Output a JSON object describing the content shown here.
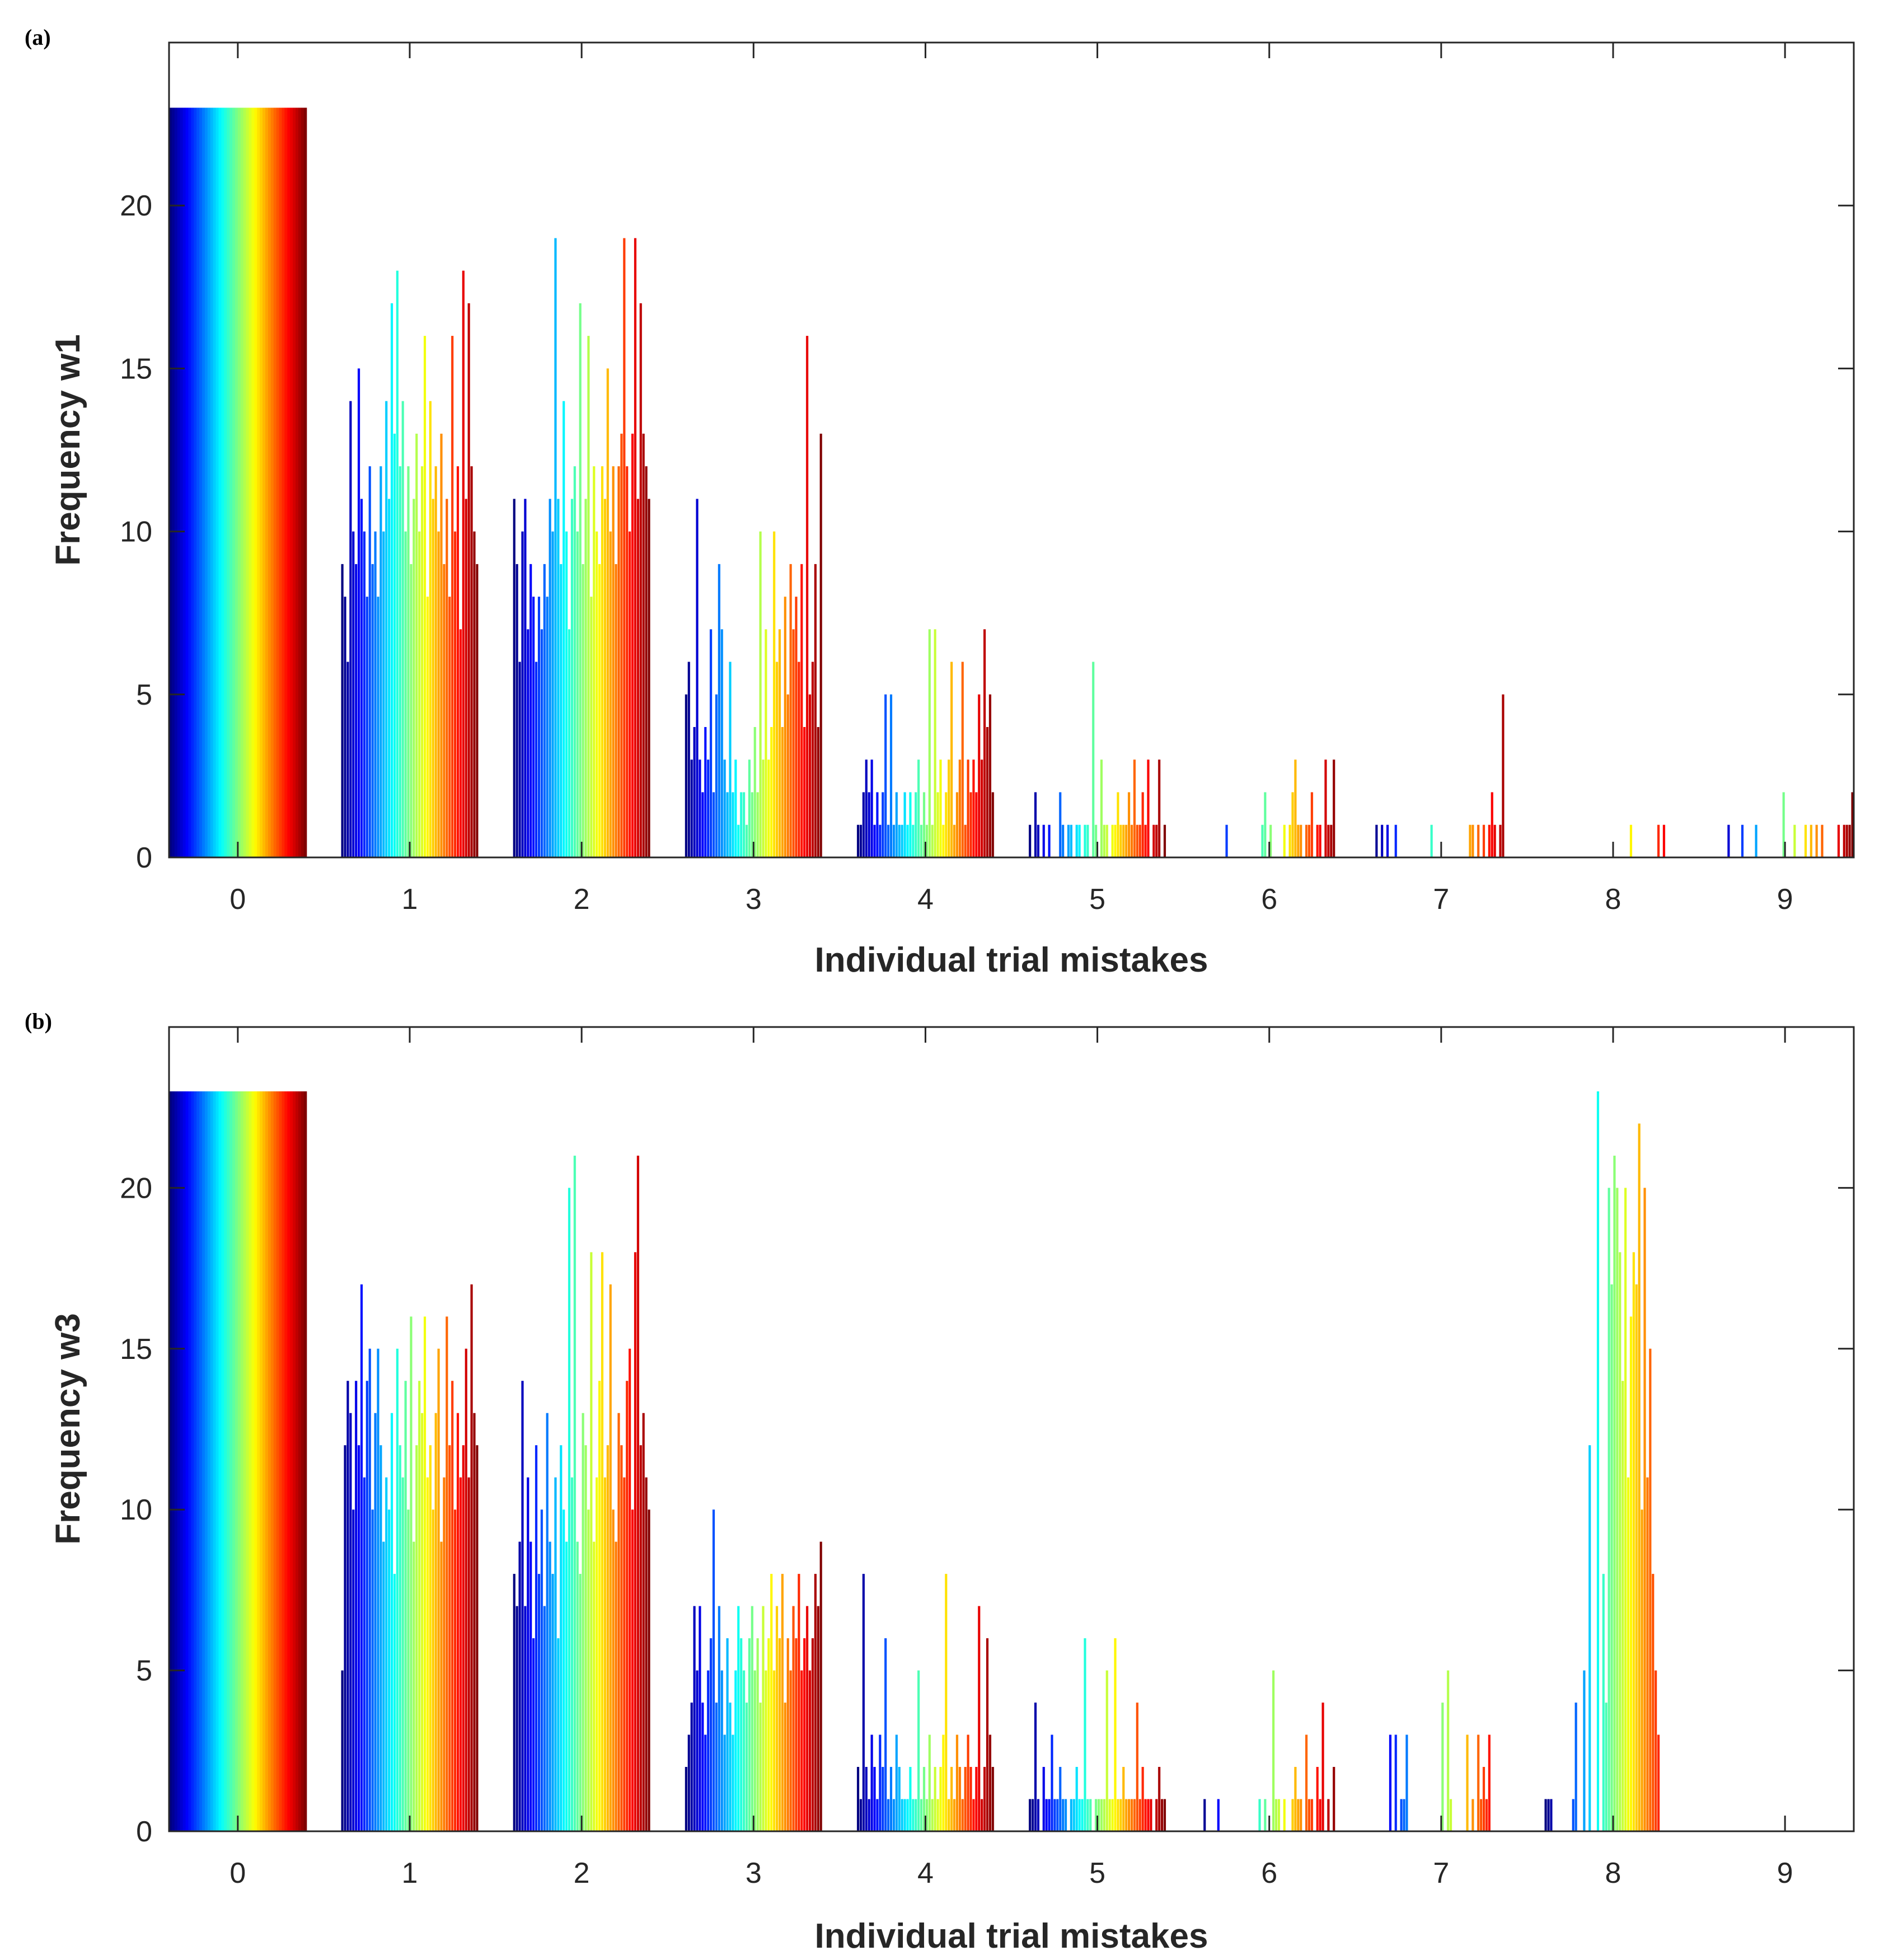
{
  "chart_data": [
    {
      "type": "bar",
      "panel": "(a)",
      "xlabel": "Individual trial mistakes",
      "ylabel": "Frequency w1",
      "categories": [
        "0",
        "1",
        "2",
        "3",
        "4",
        "5",
        "6",
        "7",
        "8",
        "9"
      ],
      "x_ticks": [
        0,
        1,
        2,
        3,
        4,
        5,
        6,
        7,
        8,
        9
      ],
      "xlim": [
        -0.4,
        9.4
      ],
      "y_ticks": [
        0,
        5,
        10,
        15,
        20
      ],
      "ylim": [
        0,
        25
      ],
      "grid": false,
      "series_count": 50,
      "colormap": "jet",
      "series_values": [
        [
          23,
          23,
          23,
          23,
          23,
          23,
          23,
          23,
          23,
          23,
          23,
          23,
          23,
          23,
          23,
          23,
          23,
          23,
          23,
          23,
          23,
          23,
          23,
          23,
          23,
          23,
          23,
          23,
          23,
          23,
          23,
          23,
          23,
          23,
          23,
          23,
          23,
          23,
          23,
          23,
          23,
          23,
          23,
          23,
          23,
          23,
          23,
          23,
          23,
          23
        ],
        [
          9,
          8,
          6,
          14,
          10,
          9,
          15,
          11,
          10,
          8,
          12,
          9,
          10,
          8,
          12,
          10,
          14,
          11,
          17,
          13,
          18,
          12,
          14,
          10,
          12,
          9,
          11,
          13,
          10,
          12,
          16,
          8,
          14,
          11,
          12,
          10,
          13,
          9,
          11,
          8,
          16,
          10,
          12,
          7,
          18,
          11,
          17,
          12,
          10,
          9
        ],
        [
          11,
          9,
          6,
          10,
          11,
          7,
          9,
          8,
          6,
          8,
          7,
          9,
          8,
          11,
          10,
          19,
          11,
          9,
          14,
          10,
          7,
          11,
          12,
          10,
          17,
          9,
          11,
          16,
          8,
          12,
          10,
          9,
          12,
          11,
          15,
          10,
          12,
          9,
          12,
          13,
          19,
          12,
          10,
          13,
          19,
          11,
          17,
          13,
          12,
          11
        ],
        [
          5,
          6,
          3,
          4,
          11,
          3,
          2,
          4,
          3,
          7,
          2,
          5,
          9,
          7,
          3,
          2,
          6,
          2,
          3,
          1,
          2,
          2,
          1,
          3,
          2,
          4,
          2,
          10,
          3,
          7,
          3,
          4,
          10,
          6,
          7,
          4,
          8,
          5,
          9,
          7,
          8,
          6,
          9,
          4,
          16,
          5,
          6,
          9,
          4,
          13
        ],
        [
          1,
          1,
          2,
          3,
          2,
          3,
          1,
          2,
          1,
          2,
          5,
          1,
          5,
          1,
          2,
          1,
          1,
          2,
          1,
          2,
          1,
          2,
          3,
          1,
          2,
          1,
          7,
          1,
          7,
          2,
          3,
          1,
          2,
          3,
          6,
          1,
          2,
          3,
          6,
          1,
          3,
          2,
          3,
          2,
          5,
          3,
          7,
          4,
          5,
          2
        ],
        [
          1,
          0,
          2,
          1,
          0,
          1,
          0,
          1,
          0,
          0,
          0,
          2,
          1,
          0,
          1,
          1,
          0,
          1,
          1,
          0,
          1,
          1,
          0,
          6,
          1,
          0,
          3,
          1,
          1,
          0,
          1,
          1,
          2,
          1,
          1,
          1,
          2,
          1,
          3,
          1,
          1,
          2,
          1,
          3,
          0,
          1,
          1,
          3,
          0,
          1
        ],
        [
          0,
          0,
          0,
          0,
          0,
          0,
          0,
          0,
          0,
          1,
          0,
          0,
          0,
          0,
          0,
          0,
          0,
          0,
          0,
          0,
          0,
          0,
          1,
          2,
          0,
          1,
          0,
          0,
          0,
          0,
          1,
          0,
          1,
          2,
          3,
          1,
          1,
          0,
          1,
          1,
          2,
          0,
          1,
          1,
          0,
          3,
          1,
          1,
          3,
          0
        ],
        [
          0,
          1,
          0,
          1,
          0,
          1,
          0,
          0,
          1,
          0,
          0,
          0,
          0,
          0,
          0,
          0,
          0,
          0,
          0,
          0,
          0,
          1,
          0,
          0,
          0,
          0,
          0,
          0,
          0,
          0,
          0,
          0,
          0,
          0,
          0,
          1,
          1,
          0,
          1,
          0,
          1,
          0,
          1,
          2,
          1,
          0,
          1,
          5,
          0,
          0
        ],
        [
          0,
          0,
          0,
          0,
          0,
          0,
          0,
          0,
          0,
          0,
          0,
          0,
          0,
          0,
          0,
          0,
          0,
          0,
          0,
          0,
          0,
          0,
          0,
          0,
          0,
          0,
          0,
          0,
          0,
          0,
          0,
          1,
          0,
          0,
          0,
          0,
          0,
          0,
          0,
          0,
          0,
          1,
          0,
          1,
          0,
          0,
          0,
          0,
          0,
          0
        ],
        [
          0,
          0,
          0,
          0,
          1,
          0,
          0,
          0,
          0,
          1,
          0,
          0,
          0,
          0,
          1,
          0,
          0,
          0,
          0,
          0,
          0,
          0,
          0,
          0,
          2,
          0,
          0,
          0,
          1,
          0,
          0,
          0,
          1,
          0,
          1,
          0,
          1,
          0,
          1,
          0,
          0,
          0,
          0,
          0,
          1,
          0,
          1,
          1,
          1,
          2
        ]
      ]
    },
    {
      "type": "bar",
      "panel": "(b)",
      "xlabel": "Individual trial mistakes",
      "ylabel": "Frequency w3",
      "categories": [
        "0",
        "1",
        "2",
        "3",
        "4",
        "5",
        "6",
        "7",
        "8",
        "9"
      ],
      "x_ticks": [
        0,
        1,
        2,
        3,
        4,
        5,
        6,
        7,
        8,
        9
      ],
      "xlim": [
        -0.4,
        9.4
      ],
      "y_ticks": [
        0,
        5,
        10,
        15,
        20
      ],
      "ylim": [
        0,
        25
      ],
      "grid": false,
      "series_count": 50,
      "colormap": "jet",
      "series_values": [
        [
          23,
          23,
          23,
          23,
          23,
          23,
          23,
          23,
          23,
          23,
          23,
          23,
          23,
          23,
          23,
          23,
          23,
          23,
          23,
          23,
          23,
          23,
          23,
          23,
          23,
          23,
          23,
          23,
          23,
          23,
          23,
          23,
          23,
          23,
          23,
          23,
          23,
          23,
          23,
          23,
          23,
          23,
          23,
          23,
          23,
          23,
          23,
          23,
          23,
          23
        ],
        [
          5,
          12,
          14,
          13,
          10,
          14,
          12,
          17,
          11,
          14,
          15,
          10,
          13,
          15,
          12,
          9,
          11,
          10,
          13,
          8,
          15,
          12,
          11,
          14,
          10,
          16,
          9,
          12,
          14,
          13,
          16,
          11,
          12,
          10,
          13,
          15,
          9,
          11,
          16,
          12,
          14,
          10,
          13,
          11,
          12,
          15,
          11,
          17,
          13,
          12
        ],
        [
          8,
          7,
          9,
          14,
          7,
          11,
          9,
          6,
          12,
          8,
          10,
          7,
          13,
          9,
          8,
          11,
          6,
          12,
          10,
          9,
          20,
          11,
          21,
          9,
          8,
          13,
          12,
          10,
          18,
          9,
          11,
          14,
          18,
          11,
          12,
          17,
          10,
          9,
          13,
          12,
          11,
          14,
          15,
          10,
          18,
          21,
          12,
          13,
          11,
          10
        ],
        [
          2,
          3,
          4,
          7,
          5,
          7,
          4,
          3,
          5,
          6,
          10,
          4,
          7,
          5,
          3,
          6,
          4,
          3,
          5,
          7,
          6,
          5,
          4,
          6,
          7,
          5,
          6,
          4,
          7,
          5,
          6,
          8,
          5,
          7,
          6,
          8,
          4,
          6,
          5,
          7,
          6,
          8,
          5,
          6,
          7,
          5,
          6,
          8,
          7,
          9
        ],
        [
          2,
          1,
          8,
          2,
          1,
          3,
          2,
          1,
          3,
          2,
          6,
          1,
          2,
          1,
          3,
          2,
          1,
          1,
          1,
          2,
          1,
          1,
          5,
          1,
          2,
          1,
          3,
          1,
          2,
          1,
          2,
          3,
          8,
          1,
          2,
          1,
          3,
          2,
          1,
          2,
          3,
          2,
          1,
          2,
          7,
          1,
          2,
          6,
          3,
          2
        ],
        [
          1,
          1,
          4,
          1,
          0,
          2,
          1,
          1,
          3,
          1,
          1,
          2,
          1,
          1,
          0,
          1,
          1,
          2,
          1,
          1,
          6,
          1,
          1,
          0,
          1,
          1,
          1,
          1,
          5,
          1,
          1,
          6,
          1,
          1,
          2,
          1,
          1,
          1,
          1,
          4,
          1,
          2,
          1,
          1,
          1,
          0,
          1,
          2,
          1,
          1
        ],
        [
          0,
          1,
          0,
          0,
          0,
          0,
          1,
          0,
          0,
          0,
          0,
          0,
          0,
          0,
          0,
          0,
          0,
          0,
          0,
          0,
          0,
          1,
          0,
          1,
          0,
          0,
          5,
          1,
          1,
          0,
          1,
          0,
          0,
          1,
          2,
          1,
          1,
          0,
          3,
          1,
          1,
          0,
          2,
          1,
          4,
          0,
          1,
          0,
          2,
          0
        ],
        [
          0,
          0,
          0,
          0,
          0,
          0,
          3,
          0,
          3,
          0,
          1,
          1,
          3,
          0,
          0,
          0,
          0,
          0,
          0,
          0,
          0,
          0,
          0,
          0,
          0,
          4,
          0,
          5,
          1,
          0,
          0,
          0,
          0,
          0,
          3,
          0,
          1,
          0,
          3,
          1,
          2,
          1,
          3,
          0,
          0,
          0,
          0,
          0,
          0,
          0
        ],
        [
          1,
          1,
          1,
          0,
          0,
          0,
          0,
          0,
          0,
          0,
          1,
          4,
          0,
          0,
          5,
          0,
          12,
          0,
          0,
          23,
          0,
          8,
          4,
          20,
          17,
          21,
          20,
          18,
          14,
          20,
          11,
          16,
          18,
          17,
          22,
          10,
          20,
          11,
          15,
          8,
          5,
          3,
          0,
          0,
          0,
          0,
          0,
          0,
          0,
          0
        ],
        [
          0,
          0,
          0,
          0,
          0,
          0,
          0,
          0,
          0,
          0,
          0,
          0,
          0,
          0,
          0,
          0,
          0,
          0,
          0,
          0,
          0,
          0,
          0,
          0,
          0,
          0,
          0,
          0,
          0,
          0,
          0,
          0,
          0,
          0,
          0,
          0,
          0,
          0,
          0,
          0,
          0,
          0,
          0,
          0,
          0,
          0,
          0,
          0,
          0,
          0
        ]
      ]
    }
  ]
}
